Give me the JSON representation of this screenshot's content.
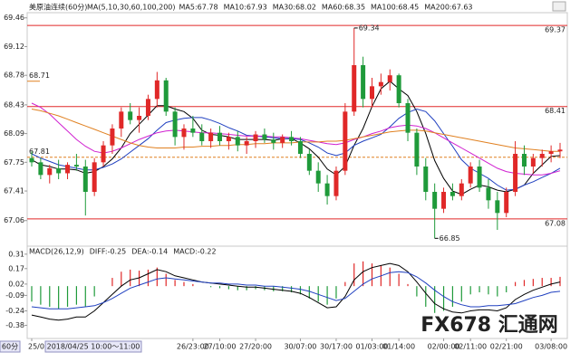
{
  "chart_data": [
    {
      "type": "candlestick",
      "title": "美原油连续(60分)",
      "indicator": "MA(5,10,30,60,100,200)",
      "indicator_labels": [
        {
          "text": "MA5:67.78",
          "color": "#000000"
        },
        {
          "text": "MA10:67.93",
          "color": "#2040c0"
        },
        {
          "text": "MA30:68.02",
          "color": "#d020d0"
        },
        {
          "text": "MA60:68.35",
          "color": "#e08020"
        },
        {
          "text": "MA100:68.45",
          "color": "#808080"
        },
        {
          "text": "MA200:67.63",
          "color": "#c04040"
        }
      ],
      "ylim": [
        66.8,
        69.5
      ],
      "yticks": [
        69.46,
        69.12,
        68.78,
        68.43,
        68.09,
        67.75,
        67.41,
        67.06
      ],
      "categories": [
        "25/05",
        null,
        null,
        null,
        null,
        null,
        null,
        null,
        null,
        null,
        null,
        null,
        null,
        null,
        null,
        null,
        null,
        null,
        "26/23:00",
        null,
        null,
        "27/10:00",
        null,
        null,
        null,
        "27/20:00",
        null,
        null,
        null,
        null,
        "30/07:00",
        null,
        null,
        null,
        "30/17:00",
        null,
        null,
        null,
        "01/03:00",
        null,
        null,
        "01/14:00",
        null,
        null,
        null,
        null,
        "02/00:00",
        null,
        null,
        "02/11:00",
        null,
        null,
        null,
        "02/21:00",
        null,
        null,
        null,
        null,
        "03/08:00",
        null
      ],
      "cursor_label": "2018/04/25 10:00～11:00",
      "interval_label": "60分",
      "up_color": "#e02828",
      "down_color": "#1f9a3a",
      "open": [
        67.8,
        67.75,
        67.6,
        67.68,
        67.62,
        67.72,
        67.7,
        67.4,
        67.75,
        67.95,
        68.15,
        68.35,
        68.25,
        68.3,
        68.5,
        68.72,
        68.35,
        68.05,
        68.15,
        68.1,
        68.0,
        68.1,
        68.0,
        68.05,
        67.95,
        68.0,
        68.08,
        68.02,
        67.98,
        68.05,
        68.0,
        67.85,
        67.65,
        67.5,
        67.35,
        67.65,
        68.35,
        68.9,
        68.5,
        68.65,
        68.7,
        68.78,
        68.45,
        68.1,
        67.7,
        67.4,
        67.2,
        67.4,
        67.35,
        67.5,
        67.7,
        67.45,
        67.3,
        67.15,
        67.4,
        67.85,
        67.7,
        67.8,
        67.85,
        67.88
      ],
      "high": [
        67.88,
        67.8,
        67.72,
        67.78,
        67.75,
        67.85,
        67.78,
        67.8,
        68.0,
        68.2,
        68.4,
        68.45,
        68.4,
        68.55,
        68.82,
        68.75,
        68.4,
        68.2,
        68.3,
        68.2,
        68.15,
        68.18,
        68.1,
        68.12,
        68.05,
        68.12,
        68.15,
        68.1,
        68.08,
        68.12,
        68.05,
        67.9,
        67.75,
        67.6,
        67.7,
        68.45,
        69.34,
        69.0,
        68.75,
        68.8,
        68.85,
        68.8,
        68.5,
        68.15,
        67.8,
        67.5,
        67.45,
        67.5,
        67.55,
        67.75,
        67.78,
        67.55,
        67.4,
        67.45,
        68.0,
        67.95,
        67.85,
        67.9,
        67.95,
        67.98
      ],
      "low": [
        67.7,
        67.55,
        67.5,
        67.55,
        67.55,
        67.65,
        67.12,
        67.35,
        67.7,
        67.85,
        68.05,
        68.2,
        68.1,
        68.25,
        68.4,
        68.3,
        67.95,
        67.9,
        68.05,
        67.95,
        67.92,
        67.95,
        67.9,
        67.88,
        67.85,
        67.92,
        67.98,
        67.9,
        67.92,
        67.95,
        67.8,
        67.6,
        67.4,
        67.25,
        67.3,
        67.6,
        68.3,
        68.4,
        68.4,
        68.55,
        68.6,
        68.4,
        68.0,
        67.6,
        67.3,
        66.85,
        67.15,
        67.3,
        67.3,
        67.45,
        67.4,
        67.2,
        66.95,
        67.1,
        67.35,
        67.6,
        67.62,
        67.7,
        67.75,
        67.8
      ],
      "close": [
        67.75,
        67.6,
        67.68,
        67.62,
        67.72,
        67.7,
        67.4,
        67.75,
        67.95,
        68.15,
        68.35,
        68.25,
        68.3,
        68.5,
        68.72,
        68.35,
        68.05,
        68.15,
        68.1,
        68.0,
        68.1,
        68.0,
        68.05,
        67.95,
        68.0,
        68.08,
        68.02,
        67.98,
        68.05,
        68.0,
        67.85,
        67.65,
        67.5,
        67.35,
        67.65,
        68.35,
        68.9,
        68.5,
        68.65,
        68.7,
        68.78,
        68.45,
        68.1,
        67.7,
        67.4,
        67.2,
        67.4,
        67.35,
        67.5,
        67.7,
        67.45,
        67.3,
        67.15,
        67.4,
        67.85,
        67.7,
        67.8,
        67.85,
        67.88,
        67.9
      ],
      "series": [
        {
          "name": "MA5",
          "color": "#000000",
          "values": [
            67.78,
            67.72,
            67.7,
            67.67,
            67.67,
            67.66,
            67.62,
            67.64,
            67.7,
            67.79,
            67.92,
            68.09,
            68.2,
            68.31,
            68.42,
            68.42,
            68.38,
            68.35,
            68.27,
            68.13,
            68.08,
            68.07,
            68.05,
            68.02,
            68.02,
            68.02,
            68.02,
            68.01,
            68.03,
            68.03,
            67.98,
            67.91,
            67.81,
            67.67,
            67.6,
            67.7,
            67.95,
            68.15,
            68.41,
            68.62,
            68.71,
            68.62,
            68.54,
            68.35,
            68.09,
            67.77,
            67.56,
            67.41,
            67.37,
            67.43,
            67.48,
            67.46,
            67.42,
            67.4,
            67.43,
            67.48,
            67.62,
            67.72,
            67.82,
            67.83
          ]
        },
        {
          "name": "MA10",
          "color": "#2040c0",
          "values": [
            67.85,
            67.8,
            67.76,
            67.72,
            67.7,
            67.68,
            67.66,
            67.66,
            67.69,
            67.73,
            67.79,
            67.87,
            67.95,
            68.03,
            68.13,
            68.22,
            68.25,
            68.27,
            68.28,
            68.28,
            68.25,
            68.21,
            68.16,
            68.12,
            68.07,
            68.06,
            68.05,
            68.04,
            68.03,
            68.03,
            68.02,
            67.98,
            67.93,
            67.86,
            67.83,
            67.86,
            67.95,
            68.0,
            68.04,
            68.08,
            68.17,
            68.27,
            68.34,
            68.38,
            68.35,
            68.24,
            68.09,
            67.94,
            67.78,
            67.68,
            67.62,
            67.56,
            67.48,
            67.42,
            67.43,
            67.48,
            67.52,
            67.57,
            67.62,
            67.68
          ]
        },
        {
          "name": "MA30",
          "color": "#d020d0",
          "values": [
            68.45,
            68.4,
            68.32,
            68.22,
            68.12,
            68.02,
            67.94,
            67.88,
            67.86,
            67.88,
            67.92,
            67.97,
            68.02,
            68.06,
            68.1,
            68.12,
            68.13,
            68.12,
            68.11,
            68.1,
            68.1,
            68.09,
            68.08,
            68.07,
            68.06,
            68.06,
            68.06,
            68.05,
            68.05,
            68.04,
            68.03,
            68.01,
            67.99,
            67.97,
            67.96,
            67.98,
            68.02,
            68.05,
            68.09,
            68.12,
            68.16,
            68.18,
            68.19,
            68.18,
            68.15,
            68.1,
            68.04,
            67.98,
            67.92,
            67.86,
            67.8,
            67.74,
            67.68,
            67.64,
            67.62,
            67.61,
            67.6,
            67.6,
            67.62,
            67.65
          ]
        },
        {
          "name": "MA60",
          "color": "#e08020",
          "values": [
            68.38,
            68.36,
            68.33,
            68.3,
            68.26,
            68.22,
            68.18,
            68.14,
            68.1,
            68.06,
            68.02,
            67.98,
            67.95,
            67.93,
            67.92,
            67.92,
            67.92,
            67.93,
            67.93,
            67.94,
            67.94,
            67.95,
            67.95,
            67.96,
            67.96,
            67.97,
            67.97,
            67.98,
            67.98,
            67.98,
            67.99,
            67.99,
            67.99,
            68.0,
            68.0,
            68.01,
            68.03,
            68.05,
            68.07,
            68.09,
            68.11,
            68.12,
            68.13,
            68.13,
            68.12,
            68.1,
            68.08,
            68.06,
            68.04,
            68.02,
            68.0,
            67.98,
            67.96,
            67.94,
            67.92,
            67.91,
            67.9,
            67.89,
            67.88,
            67.88
          ]
        }
      ],
      "hlines": [
        {
          "value": 69.37,
          "color": "#e02828"
        },
        {
          "value": 68.41,
          "color": "#e02828"
        },
        {
          "value": 67.08,
          "color": "#e02828"
        }
      ],
      "left_levels": [
        {
          "value": 68.71,
          "color": "#e08020",
          "dashed": false
        },
        {
          "value": 67.81,
          "color": "#e08020",
          "dashed": true
        }
      ],
      "high_mark": 69.34,
      "low_mark": 66.85,
      "watermark": "FX678 汇通网"
    },
    {
      "type": "macd",
      "title": "MACD(26,12,9)",
      "indicator_labels": [
        {
          "text": "DIFF:-0.25",
          "color": "#000000"
        },
        {
          "text": "DEA:-0.14",
          "color": "#2040c0"
        },
        {
          "text": "MACD:-0.22",
          "color": "#d020d0"
        }
      ],
      "ylim": [
        -0.49,
        0.37
      ],
      "yticks": [
        0.31,
        0.17,
        0.02,
        -0.09,
        -0.24,
        -0.38
      ],
      "up_color": "#e02828",
      "down_color": "#1f9a3a",
      "values": [
        -0.15,
        -0.18,
        -0.2,
        -0.22,
        -0.2,
        -0.18,
        -0.2,
        -0.1,
        0.0,
        0.08,
        0.14,
        0.16,
        0.15,
        0.16,
        0.18,
        0.12,
        0.06,
        0.04,
        0.02,
        0.0,
        -0.01,
        -0.02,
        -0.03,
        -0.04,
        -0.04,
        -0.03,
        -0.04,
        -0.05,
        -0.05,
        -0.06,
        -0.08,
        -0.12,
        -0.15,
        -0.18,
        -0.12,
        0.04,
        0.22,
        0.24,
        0.22,
        0.2,
        0.18,
        0.12,
        0.02,
        -0.1,
        -0.2,
        -0.26,
        -0.24,
        -0.2,
        -0.15,
        -0.08,
        -0.06,
        -0.08,
        -0.1,
        -0.06,
        0.04,
        0.06,
        0.07,
        0.08,
        0.08,
        0.09
      ],
      "series": [
        {
          "name": "DIFF",
          "color": "#000000",
          "values": [
            -0.28,
            -0.3,
            -0.32,
            -0.33,
            -0.32,
            -0.3,
            -0.3,
            -0.24,
            -0.16,
            -0.08,
            0.0,
            0.06,
            0.08,
            0.12,
            0.16,
            0.14,
            0.1,
            0.08,
            0.06,
            0.04,
            0.03,
            0.02,
            0.01,
            0.0,
            -0.01,
            -0.01,
            -0.02,
            -0.03,
            -0.04,
            -0.05,
            -0.07,
            -0.11,
            -0.16,
            -0.21,
            -0.2,
            -0.1,
            0.06,
            0.14,
            0.18,
            0.2,
            0.22,
            0.2,
            0.14,
            0.04,
            -0.07,
            -0.17,
            -0.22,
            -0.25,
            -0.26,
            -0.24,
            -0.23,
            -0.23,
            -0.24,
            -0.21,
            -0.13,
            -0.08,
            -0.04,
            -0.01,
            0.02,
            0.04
          ]
        },
        {
          "name": "DEA",
          "color": "#2040c0",
          "values": [
            -0.2,
            -0.21,
            -0.22,
            -0.22,
            -0.22,
            -0.21,
            -0.2,
            -0.19,
            -0.16,
            -0.12,
            -0.07,
            -0.02,
            0.01,
            0.04,
            0.07,
            0.08,
            0.07,
            0.06,
            0.05,
            0.04,
            0.03,
            0.03,
            0.02,
            0.02,
            0.01,
            0.01,
            0.0,
            0.0,
            -0.01,
            -0.02,
            -0.03,
            -0.05,
            -0.08,
            -0.11,
            -0.14,
            -0.12,
            -0.05,
            0.02,
            0.07,
            0.1,
            0.13,
            0.14,
            0.13,
            0.09,
            0.03,
            -0.04,
            -0.1,
            -0.15,
            -0.18,
            -0.2,
            -0.2,
            -0.19,
            -0.19,
            -0.18,
            -0.17,
            -0.14,
            -0.11,
            -0.09,
            -0.06,
            -0.05
          ]
        }
      ]
    }
  ]
}
